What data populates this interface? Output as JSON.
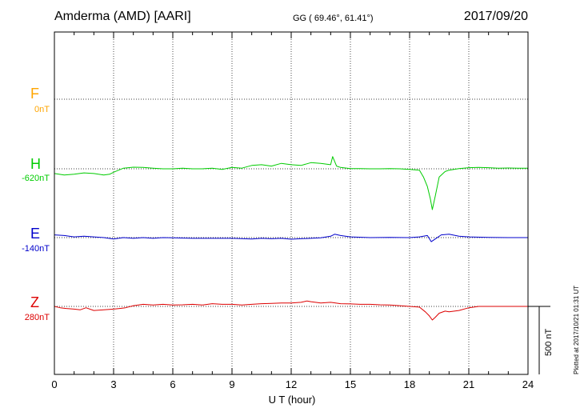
{
  "header": {
    "station": "Amderma (AMD)  [AARI]",
    "coords": "GG ( 69.46°,  61.41°)",
    "date": "2017/09/20"
  },
  "components": [
    {
      "name": "F",
      "base": "0nT",
      "color": "#ffa500"
    },
    {
      "name": "H",
      "base": "-620nT",
      "color": "#00cc00"
    },
    {
      "name": "E",
      "base": "-140nT",
      "color": "#0000cc"
    },
    {
      "name": "Z",
      "base": "280nT",
      "color": "#dd0000"
    }
  ],
  "scale_label": "500 nT",
  "plotted_note": "Plotted at 2017/10/21 01:31  UT",
  "chart_data": {
    "type": "line",
    "xlabel": "U T (hour)",
    "xlim": [
      0,
      24
    ],
    "x_ticks": [
      "0",
      "3",
      "6",
      "9",
      "12",
      "15",
      "18",
      "21",
      "24"
    ],
    "scale_nT": 500,
    "series": [
      {
        "name": "F",
        "color": "#ffa500",
        "offset_nT": 0,
        "x": [],
        "y": []
      },
      {
        "name": "H",
        "color": "#00cc00",
        "offset_nT": -620,
        "x": [
          0,
          0.5,
          1,
          1.5,
          2,
          2.5,
          2.8,
          3,
          3.5,
          4,
          4.5,
          5,
          5.5,
          6,
          6.5,
          7,
          7.5,
          8,
          8.5,
          9,
          9.5,
          10,
          10.5,
          11,
          11.5,
          12,
          12.5,
          13,
          13.5,
          14,
          14.1,
          14.3,
          14.5,
          15,
          15.5,
          16,
          16.5,
          17,
          17.5,
          18,
          18.5,
          18.7,
          18.9,
          19.05,
          19.15,
          19.3,
          19.5,
          19.8,
          20,
          20.5,
          21,
          21.5,
          22,
          22.5,
          23,
          23.5,
          24
        ],
        "y": [
          -35,
          -45,
          -40,
          -30,
          -35,
          -45,
          -40,
          -25,
          5,
          12,
          10,
          5,
          0,
          0,
          5,
          0,
          0,
          5,
          -5,
          10,
          5,
          25,
          30,
          20,
          40,
          30,
          25,
          45,
          40,
          30,
          90,
          20,
          10,
          2,
          2,
          0,
          0,
          2,
          0,
          -5,
          -10,
          -60,
          -130,
          -220,
          -300,
          -200,
          -60,
          -20,
          -10,
          2,
          8,
          10,
          8,
          5,
          6,
          5,
          5
        ]
      },
      {
        "name": "E",
        "color": "#0000cc",
        "offset_nT": -140,
        "x": [
          0,
          0.5,
          1,
          1.5,
          2,
          2.5,
          3,
          3.5,
          4,
          4.5,
          5,
          5.5,
          6,
          7,
          8,
          9,
          10,
          10.5,
          11,
          11.5,
          12,
          12.5,
          13,
          13.5,
          14,
          14.2,
          14.5,
          15,
          16,
          17,
          18,
          18.5,
          18.9,
          19.1,
          19.3,
          19.6,
          20,
          20.5,
          21,
          22,
          23,
          24
        ],
        "y": [
          20,
          15,
          5,
          10,
          5,
          0,
          -10,
          0,
          -5,
          0,
          -5,
          0,
          -2,
          -5,
          -5,
          -5,
          -10,
          -5,
          -8,
          -5,
          -12,
          -8,
          -5,
          -2,
          10,
          25,
          15,
          5,
          0,
          2,
          0,
          5,
          15,
          -30,
          -10,
          20,
          25,
          10,
          5,
          2,
          0,
          0
        ]
      },
      {
        "name": "Z",
        "color": "#dd0000",
        "offset_nT": 280,
        "x": [
          0,
          0.3,
          0.6,
          1,
          1.3,
          1.6,
          2,
          2.5,
          3,
          3.3,
          3.6,
          4,
          4.5,
          5,
          5.5,
          6,
          6.5,
          7,
          7.5,
          8,
          8.5,
          9,
          9.5,
          10,
          10.5,
          11,
          11.5,
          12,
          12.5,
          12.8,
          13,
          13.5,
          14,
          14.5,
          15,
          15.5,
          16,
          16.5,
          17,
          17.5,
          18,
          18.5,
          18.8,
          19,
          19.15,
          19.3,
          19.5,
          19.8,
          20,
          20.5,
          21,
          21.5,
          22,
          22.5,
          23,
          23.5,
          24
        ],
        "y": [
          0,
          -10,
          -15,
          -20,
          -25,
          -10,
          -30,
          -25,
          -20,
          -15,
          -10,
          5,
          15,
          10,
          15,
          10,
          12,
          15,
          10,
          20,
          15,
          15,
          10,
          15,
          20,
          22,
          25,
          25,
          30,
          40,
          35,
          25,
          30,
          20,
          18,
          15,
          15,
          12,
          10,
          5,
          0,
          -5,
          -40,
          -70,
          -100,
          -80,
          -50,
          -35,
          -40,
          -30,
          -10,
          0,
          0,
          0,
          0,
          0,
          0
        ]
      }
    ]
  }
}
